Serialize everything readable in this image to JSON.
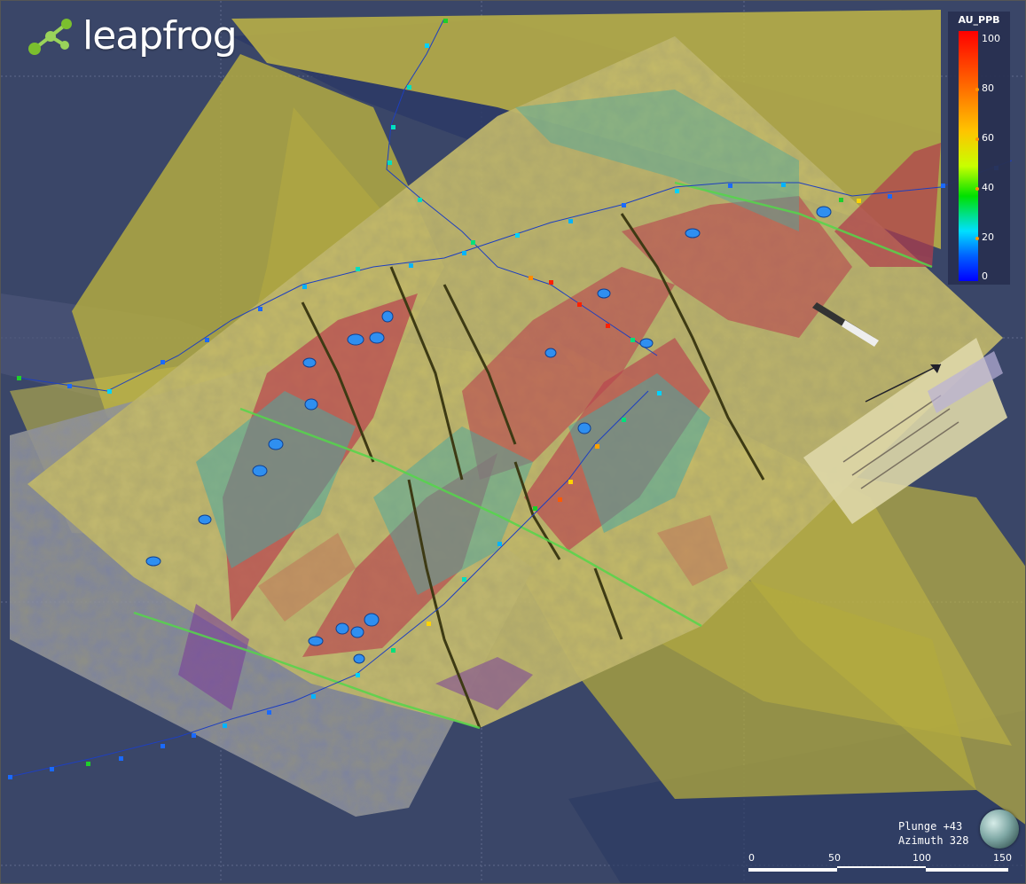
{
  "app": {
    "logo_text": "leapfrog"
  },
  "legend": {
    "title": "AU_PPB",
    "ticks": [
      "100",
      "80",
      "60",
      "40",
      "20",
      "0"
    ]
  },
  "view": {
    "plunge": "Plunge +43",
    "azimuth": "Azimuth 328"
  },
  "scale": {
    "labels": [
      "0",
      "50",
      "100",
      "150"
    ]
  },
  "colors": {
    "background": "#3a4668",
    "surface_yellow": "#c8c041",
    "surface_red": "#b9424e",
    "surface_teal": "#4aa8a0",
    "map_sheet": "#cfc37a",
    "map_sheet_grey": "#7a819a"
  },
  "icons": [
    "leapfrog-logo-icon",
    "orientation-globe-icon"
  ]
}
